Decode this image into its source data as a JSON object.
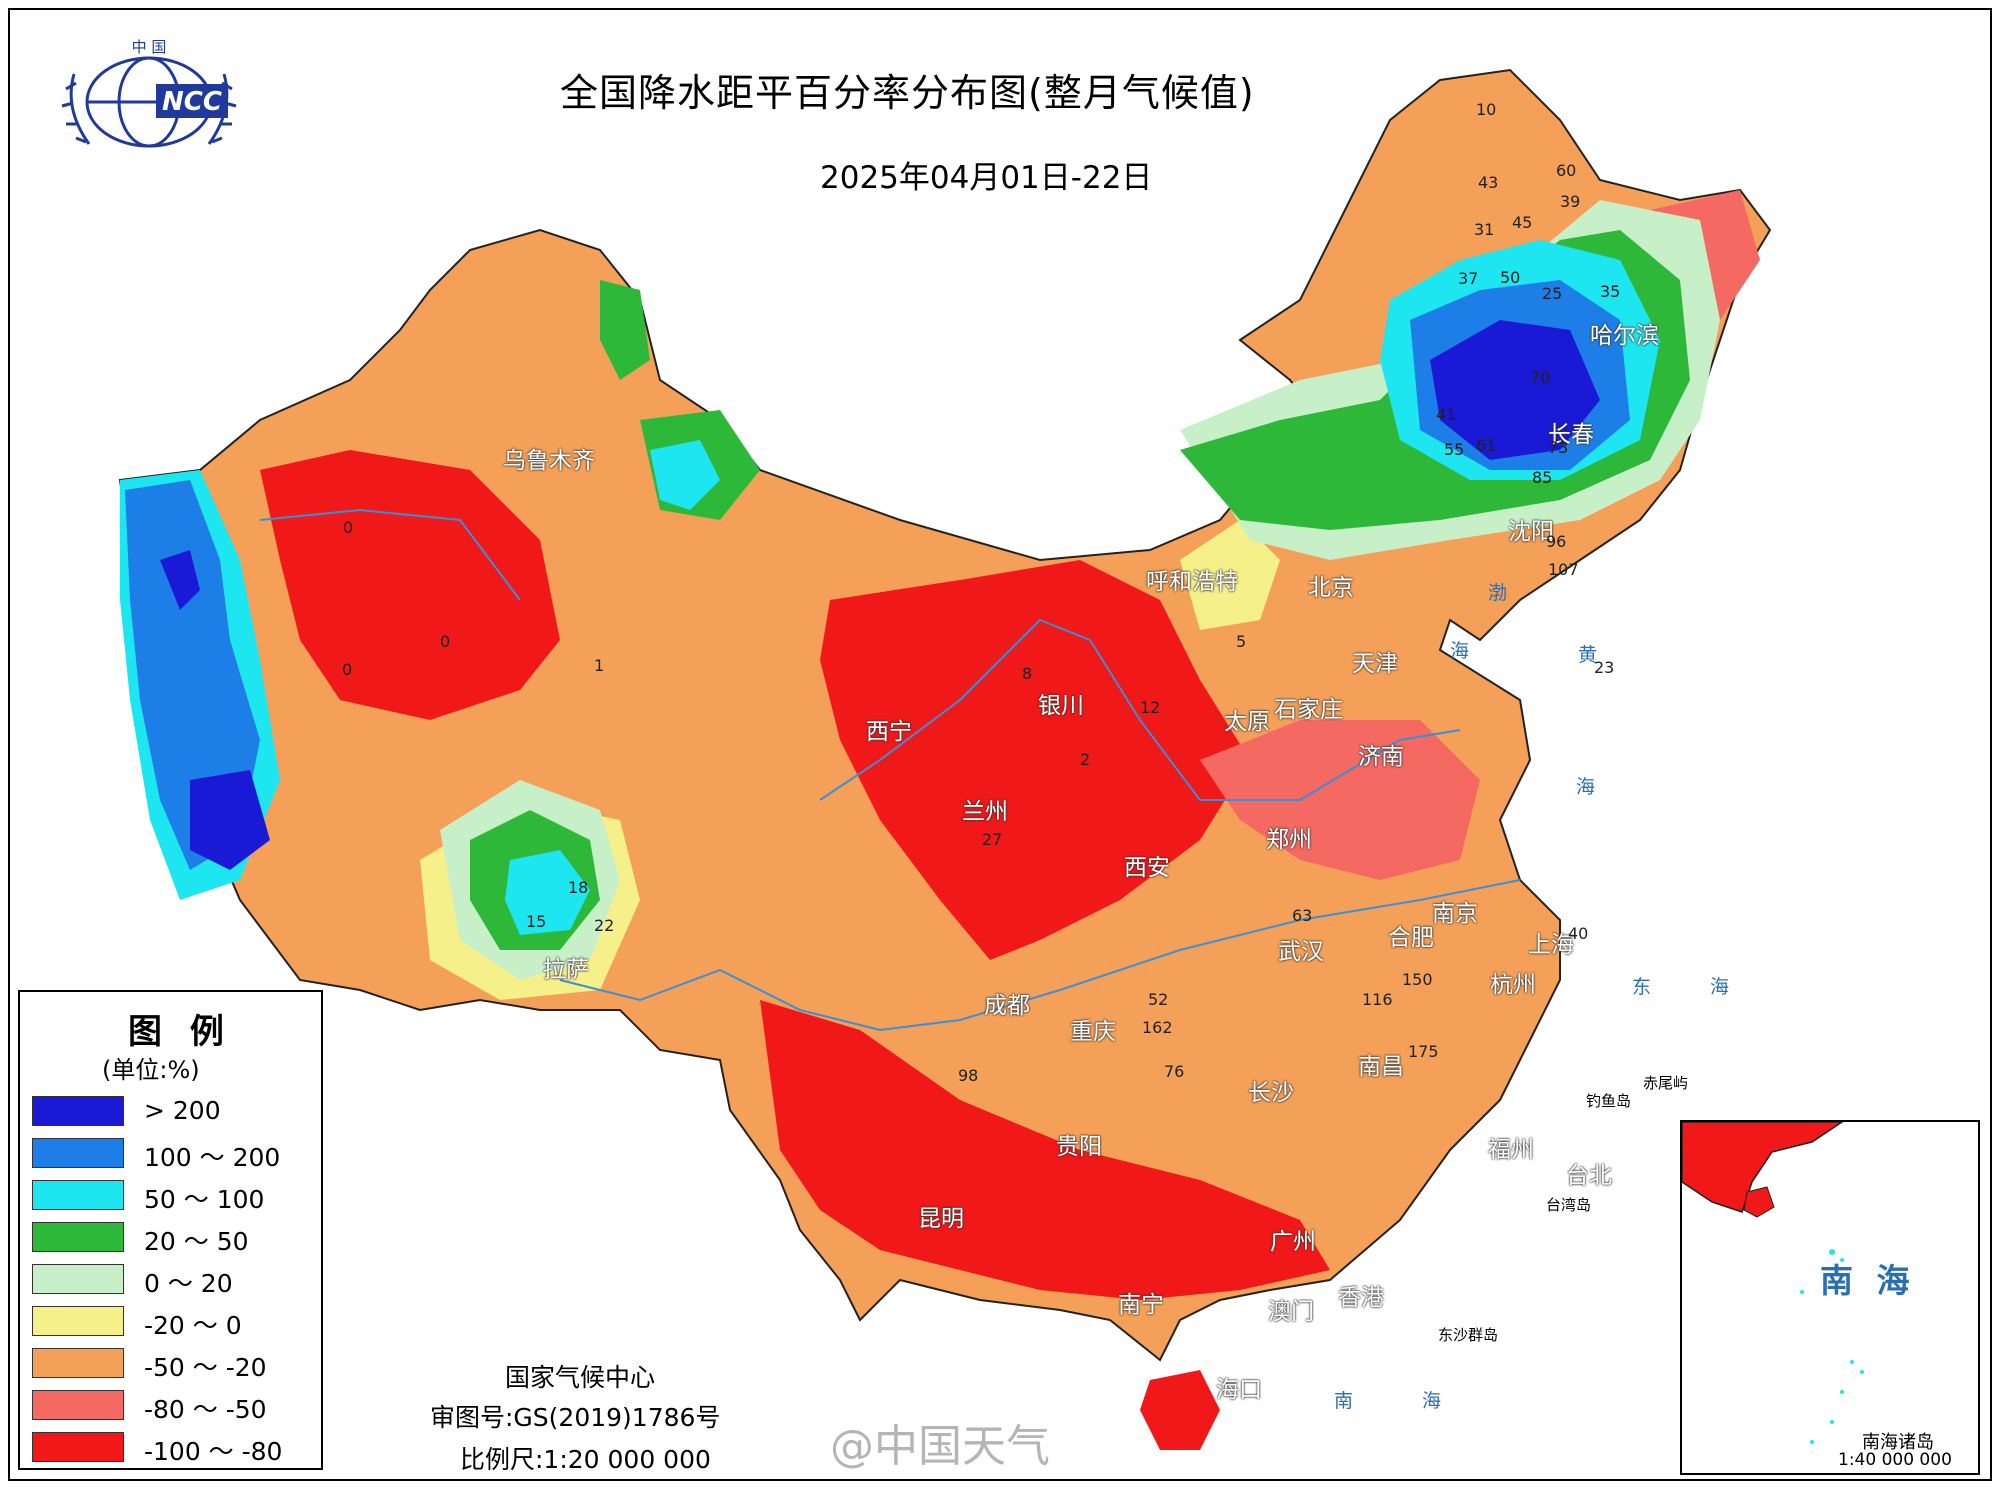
{
  "header": {
    "title": "全国降水距平百分率分布图(整月气候值)",
    "date_range": "2025年04月01日-22日",
    "logo_top_text": "中 国",
    "logo_mark": "NCC"
  },
  "legend": {
    "title": "图 例",
    "unit": "(单位:%)",
    "items": [
      {
        "label": "> 200",
        "color": "#1a1ad6"
      },
      {
        "label": "100 ～ 200",
        "color": "#1e7ee8"
      },
      {
        "label": "50 ～ 100",
        "color": "#1ee6f0"
      },
      {
        "label": "20 ～ 50",
        "color": "#2db83a"
      },
      {
        "label": "0 ～ 20",
        "color": "#c8f0c8"
      },
      {
        "label": "-20 ～ 0",
        "color": "#f6f08a"
      },
      {
        "label": "-50 ～ -20",
        "color": "#f4a058"
      },
      {
        "label": "-80 ～ -50",
        "color": "#f46a62"
      },
      {
        "label": "-100 ～ -80",
        "color": "#f01818"
      }
    ]
  },
  "credits": {
    "agency": "国家气候中心",
    "map_review": "审图号:GS(2019)1786号",
    "scale": "比例尺:1:20 000 000"
  },
  "inset": {
    "name": "南 海",
    "caption": "南海诸岛",
    "scale": "1:40 000 000"
  },
  "watermark": "@中国天气",
  "cities": [
    {
      "name": "乌鲁木齐"
    },
    {
      "name": "哈尔滨"
    },
    {
      "name": "长春"
    },
    {
      "name": "沈阳"
    },
    {
      "name": "呼和浩特"
    },
    {
      "name": "北京"
    },
    {
      "name": "天津"
    },
    {
      "name": "银川"
    },
    {
      "name": "西宁"
    },
    {
      "name": "兰州"
    },
    {
      "name": "太原"
    },
    {
      "name": "石家庄"
    },
    {
      "name": "济南"
    },
    {
      "name": "郑州"
    },
    {
      "name": "西安"
    },
    {
      "name": "南京"
    },
    {
      "name": "合肥"
    },
    {
      "name": "上海"
    },
    {
      "name": "武汉"
    },
    {
      "name": "杭州"
    },
    {
      "name": "成都"
    },
    {
      "name": "重庆"
    },
    {
      "name": "拉萨"
    },
    {
      "name": "南昌"
    },
    {
      "name": "长沙"
    },
    {
      "name": "福州"
    },
    {
      "name": "台北"
    },
    {
      "name": "贵阳"
    },
    {
      "name": "昆明"
    },
    {
      "name": "广州"
    },
    {
      "name": "南宁"
    },
    {
      "name": "香港"
    },
    {
      "name": "澳门"
    },
    {
      "name": "海口"
    }
  ],
  "sea_labels": [
    {
      "name": "渤"
    },
    {
      "name": "海"
    },
    {
      "name": "黄"
    },
    {
      "name": "海"
    },
    {
      "name": "东"
    },
    {
      "name": "海"
    },
    {
      "name": "南"
    },
    {
      "name": "海"
    }
  ],
  "island_labels": [
    {
      "name": "赤尾屿"
    },
    {
      "name": "钓鱼岛"
    },
    {
      "name": "台湾岛"
    },
    {
      "name": "东沙群岛"
    }
  ],
  "station_values": [
    {
      "value": "10"
    },
    {
      "value": "43"
    },
    {
      "value": "60"
    },
    {
      "value": "39"
    },
    {
      "value": "31"
    },
    {
      "value": "45"
    },
    {
      "value": "37"
    },
    {
      "value": "50"
    },
    {
      "value": "25"
    },
    {
      "value": "35"
    },
    {
      "value": "41"
    },
    {
      "value": "55"
    },
    {
      "value": "61"
    },
    {
      "value": "70"
    },
    {
      "value": "73"
    },
    {
      "value": "85"
    },
    {
      "value": "96"
    },
    {
      "value": "107"
    },
    {
      "value": "0"
    },
    {
      "value": "0"
    },
    {
      "value": "0"
    },
    {
      "value": "1"
    },
    {
      "value": "2"
    },
    {
      "value": "8"
    },
    {
      "value": "18"
    },
    {
      "value": "15"
    },
    {
      "value": "22"
    },
    {
      "value": "98"
    },
    {
      "value": "162"
    },
    {
      "value": "175"
    },
    {
      "value": "150"
    },
    {
      "value": "116"
    },
    {
      "value": "27"
    },
    {
      "value": "12"
    },
    {
      "value": "5"
    },
    {
      "value": "52"
    },
    {
      "value": "76"
    },
    {
      "value": "63"
    },
    {
      "value": "40"
    },
    {
      "value": "23"
    }
  ]
}
